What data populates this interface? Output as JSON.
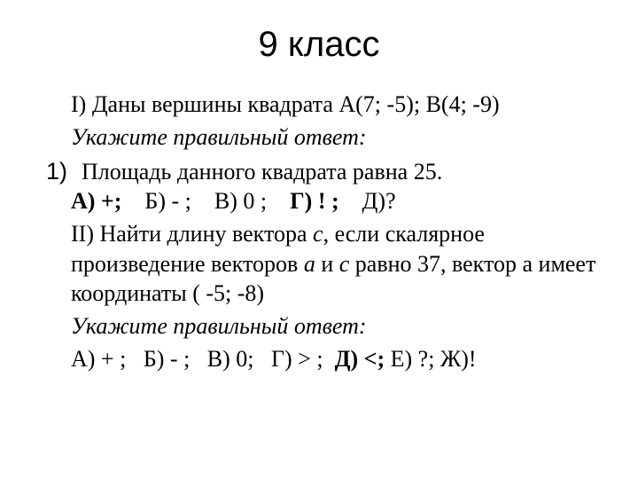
{
  "title": "9 класс",
  "p1": "I) Даны вершины квадрата А(7; -5);   В(4; -9)",
  "p2": "Укажите правильный ответ:",
  "item1_num": "1)",
  "item1_text": "Площадь данного квадрата равна 25.",
  "ans1": {
    "a": "А) +;",
    "b": "    Б) - ;",
    "c": "    В) 0 ;",
    "d": "    Г) ! ;",
    "e": "    Д)?"
  },
  "p3a": "II) Найти длину вектора ",
  "p3_c1": "с",
  "p3b": ", если скалярное произведение векторов ",
  "p3_a": "а",
  "p3c": " и ",
  "p3_c2": "с",
  "p3d": " равно 37, вектор а имеет координаты ( -5;  -8)",
  "p4": "Укажите правильный ответ:",
  "ans2": {
    "a": "А) + ;   Б) - ;   В) 0;   Г) > ;  ",
    "d": "Д) <;",
    "rest": " Е) ?; Ж)!"
  },
  "colors": {
    "text": "#000000",
    "background": "#ffffff"
  },
  "fonts": {
    "title_family": "Arial",
    "title_size_pt": 40,
    "body_family": "Times New Roman",
    "body_size_pt": 26
  }
}
